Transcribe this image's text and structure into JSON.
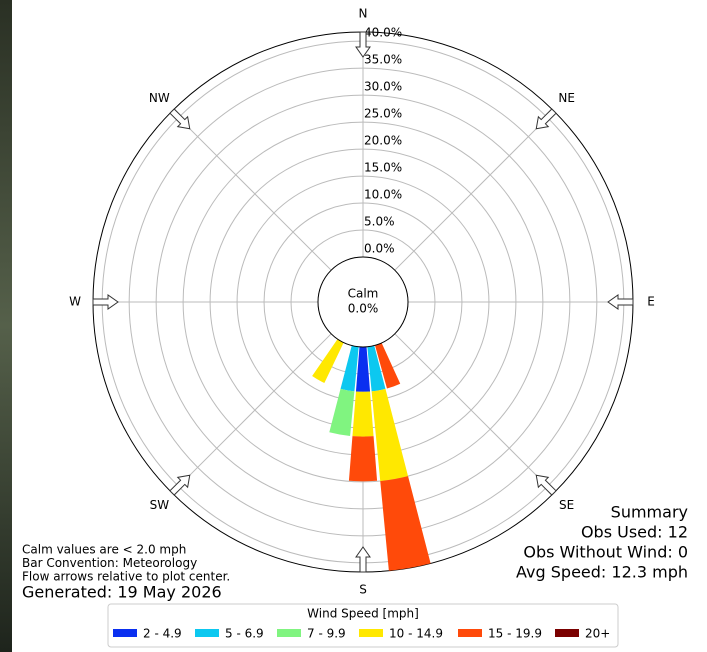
{
  "chart_data": {
    "type": "windrose",
    "compass": [
      "N",
      "NE",
      "E",
      "SE",
      "S",
      "SW",
      "W",
      "NW"
    ],
    "rlim": [
      0,
      41.7
    ],
    "rticks": [
      {
        "value": 0,
        "label": "0.0%"
      },
      {
        "value": 5,
        "label": "5.0%"
      },
      {
        "value": 10,
        "label": "10.0%"
      },
      {
        "value": 15,
        "label": "15.0%"
      },
      {
        "value": 20,
        "label": "20.0%"
      },
      {
        "value": 25,
        "label": "25.0%"
      },
      {
        "value": 30,
        "label": "30.0%"
      },
      {
        "value": 35,
        "label": "35.0%"
      },
      {
        "value": 40,
        "label": "40.0%"
      }
    ],
    "calm_label": "Calm",
    "calm_value": 0,
    "calm_value_label": "0.0%",
    "directions": [
      160,
      170,
      180,
      190,
      210
    ],
    "legend_title": "Wind Speed [mph]",
    "series": [
      {
        "name": "2 - 4.9",
        "color": "#0a2ff0",
        "values": [
          0,
          0,
          8.3,
          0,
          0
        ]
      },
      {
        "name": "5 - 6.9",
        "color": "#0cc8f0",
        "values": [
          0,
          8.3,
          0,
          8.3,
          0
        ]
      },
      {
        "name": "7 - 9.9",
        "color": "#80f480",
        "values": [
          0,
          0,
          0,
          8.3,
          0
        ]
      },
      {
        "name": "10 - 14.9",
        "color": "#ffe800",
        "values": [
          0,
          16.7,
          8.3,
          0,
          8.3
        ]
      },
      {
        "name": "15 - 19.9",
        "color": "#ff4a0a",
        "values": [
          8.3,
          16.7,
          8.3,
          0,
          0
        ]
      },
      {
        "name": "20+",
        "color": "#7a0000",
        "values": [
          0,
          0,
          0,
          0,
          0
        ]
      }
    ],
    "summary": [
      "Summary",
      "Obs Used: 12",
      "Obs Without Wind: 0",
      "Avg Speed: 12.3 mph"
    ],
    "notes": [
      "Calm values are < 2.0 mph",
      "Bar Convention: Meteorology",
      "Flow arrows relative to plot center."
    ],
    "generated": "Generated: 19 May 2026"
  }
}
